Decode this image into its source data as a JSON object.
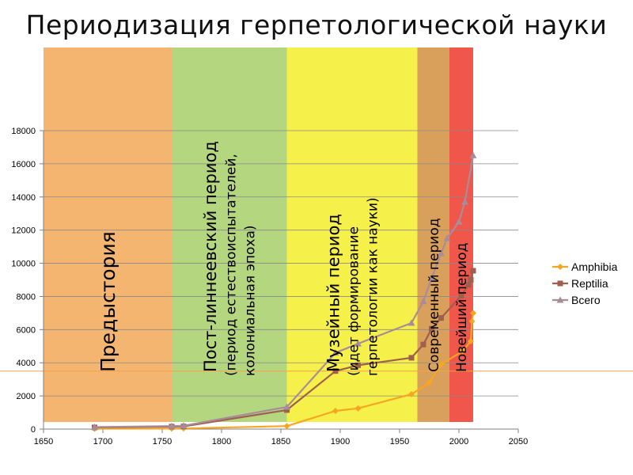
{
  "slide": {
    "title": "Периодизация герпетологической науки"
  },
  "chart_data": {
    "type": "line",
    "xlim": [
      1650,
      2050
    ],
    "ylim": [
      0,
      18000
    ],
    "x_ticks": [
      1650,
      1700,
      1750,
      1800,
      1850,
      1900,
      1950,
      2000,
      2050
    ],
    "y_ticks": [
      0,
      2000,
      4000,
      6000,
      8000,
      10000,
      12000,
      14000,
      16000,
      18000
    ],
    "grid": "horizontal",
    "legend_position": "right",
    "periods": [
      {
        "from": 1650,
        "to": 1758,
        "color": "#f4b571",
        "lines": [
          "Предыстория"
        ],
        "size": 25
      },
      {
        "from": 1758,
        "to": 1855,
        "color": "#b3d67e",
        "lines": [
          "Пост-линнеевский период",
          "(период естествоиспытателей,",
          "колониальная эпоха)"
        ],
        "size": 21
      },
      {
        "from": 1855,
        "to": 1965,
        "color": "#f5f04a",
        "lines": [
          "Музейный период",
          "(идет формирование",
          "герпетологии как науки)"
        ],
        "size": 21
      },
      {
        "from": 1965,
        "to": 1992,
        "color": "#d9a05c",
        "lines": [
          "Современный период"
        ],
        "size": 17
      },
      {
        "from": 1992,
        "to": 2012,
        "color": "#f0564a",
        "lines": [
          "Новейший период"
        ],
        "size": 17
      }
    ],
    "series": [
      {
        "name": "Amphibia",
        "color": "#f6a623",
        "marker": "diamond",
        "x": [
          1693,
          1758,
          1768,
          1855,
          1896,
          1915,
          1960,
          1975,
          1985,
          2003,
          2010,
          2011,
          2012
        ],
        "y": [
          20,
          30,
          40,
          180,
          1100,
          1250,
          2100,
          2800,
          3900,
          4700,
          5300,
          6500,
          7000
        ]
      },
      {
        "name": "Reptilia",
        "color": "#9e5f4c",
        "marker": "square",
        "x": [
          1693,
          1758,
          1768,
          1855,
          1896,
          1915,
          1960,
          1970,
          1977,
          1985,
          2002,
          2008,
          2010,
          2012
        ],
        "y": [
          100,
          150,
          160,
          1150,
          3500,
          3850,
          4300,
          5100,
          6050,
          6700,
          8050,
          8700,
          9000,
          9550
        ]
      },
      {
        "name": "Всего",
        "color": "#a88c98",
        "marker": "triangle",
        "x": [
          1693,
          1758,
          1768,
          1855,
          1896,
          1915,
          1960,
          1970,
          1977,
          1985,
          1990,
          2000,
          2005,
          2012
        ],
        "y": [
          120,
          180,
          200,
          1330,
          4600,
          5150,
          6400,
          7700,
          9100,
          10600,
          11500,
          12500,
          13700,
          16500
        ]
      }
    ]
  }
}
